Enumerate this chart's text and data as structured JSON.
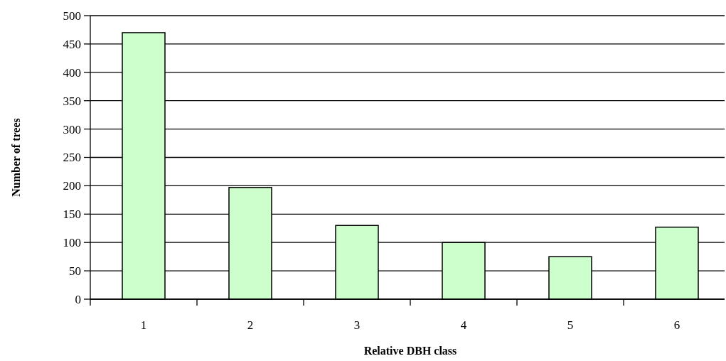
{
  "chart_data": {
    "type": "bar",
    "xlabel": "Relative DBH class",
    "ylabel": "Number of trees",
    "categories": [
      "1",
      "2",
      "3",
      "4",
      "5",
      "6"
    ],
    "values": [
      470,
      197,
      130,
      100,
      75,
      127
    ],
    "color": "#ccffcc",
    "ylim": [
      0,
      500
    ],
    "yticks": [
      0,
      50,
      100,
      150,
      200,
      250,
      300,
      350,
      400,
      450,
      500
    ],
    "grid": "y"
  }
}
